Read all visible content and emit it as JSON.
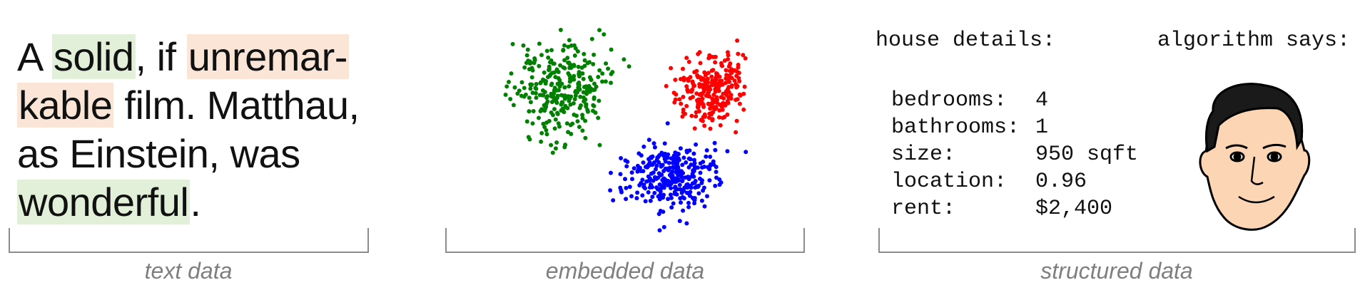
{
  "text_panel": {
    "lines": [
      [
        {
          "text": "A "
        },
        {
          "text": "solid",
          "highlight": "#e2f0d9"
        },
        {
          "text": ", if "
        },
        {
          "text": "unremar-",
          "highlight": "#fbe5d6"
        }
      ],
      [
        {
          "text": "kable",
          "highlight": "#fbe5d6"
        },
        {
          "text": " film. Matthau,"
        }
      ],
      [
        {
          "text": "as Einstein, was"
        }
      ],
      [
        {
          "text": "wonderful",
          "highlight": "#e2f0d9"
        },
        {
          "text": "."
        }
      ]
    ],
    "caption": "text data"
  },
  "embedded_panel": {
    "caption": "embedded data",
    "cluster_colors": [
      "#008000",
      "#ff0000",
      "#0000ff"
    ]
  },
  "structured_panel": {
    "heading": "house details:",
    "output_heading": "algorithm says:",
    "rows": [
      [
        "bedrooms:",
        "4"
      ],
      [
        "bathrooms:",
        "1"
      ],
      [
        "size:",
        "950 sqft"
      ],
      [
        "location:",
        "0.96"
      ],
      [
        "rent:",
        "$2,400"
      ]
    ],
    "caption": "structured data"
  }
}
